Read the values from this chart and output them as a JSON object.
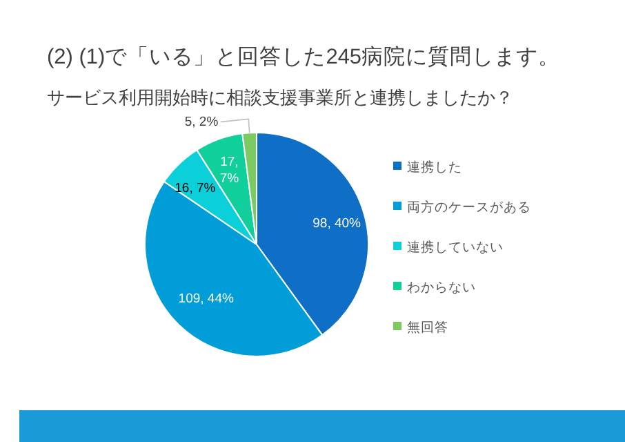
{
  "chart_data": {
    "type": "pie",
    "title": "(2) (1)で「いる」と回答した245病院に質問します。",
    "subtitle": "サービス利用開始時に相談支援事業所と連携しましたか？",
    "categories": [
      "連携した",
      "両方のケースがある",
      "連携していない",
      "わからない",
      "無回答"
    ],
    "values": [
      98,
      109,
      16,
      17,
      5
    ],
    "colors": [
      "#0f6fc6",
      "#009dd9",
      "#0bd0d9",
      "#10cf9b",
      "#7cca62"
    ],
    "value_labels": [
      "98, 40%",
      "109, 44%",
      "16, 7%",
      "17, 7%",
      "5, 2%"
    ],
    "legend": "right"
  }
}
